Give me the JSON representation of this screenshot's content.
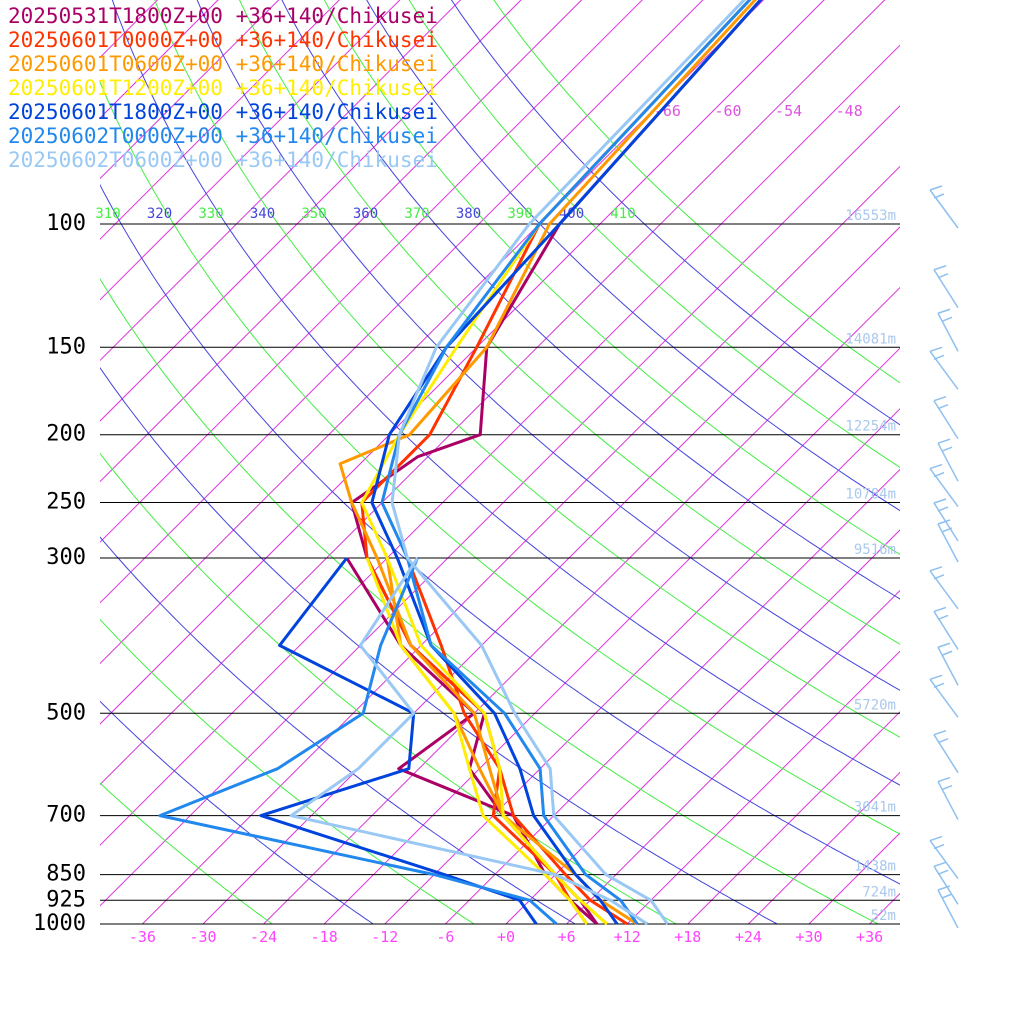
{
  "chart_data": {
    "type": "line",
    "subtype": "skew-t log-p sounding",
    "x_axis": {
      "unit": "degC",
      "ticks": [
        "-36",
        "-30",
        "-24",
        "-18",
        "-12",
        "-6",
        "+0",
        "+6",
        "+12",
        "+18",
        "+24",
        "+30",
        "+36"
      ],
      "color": "#ff44ff"
    },
    "y_axis": {
      "unit": "hPa",
      "scale": "log",
      "ticks": [
        "100",
        "150",
        "200",
        "250",
        "300",
        "500",
        "700",
        "850",
        "925",
        "1000"
      ]
    },
    "height_labels": [
      {
        "p": 100,
        "text": "16553m"
      },
      {
        "p": 150,
        "text": "14081m"
      },
      {
        "p": 200,
        "text": "12254m"
      },
      {
        "p": 250,
        "text": "10784m"
      },
      {
        "p": 300,
        "text": "9516m"
      },
      {
        "p": 500,
        "text": "5720m"
      },
      {
        "p": 700,
        "text": "3041m"
      },
      {
        "p": 850,
        "text": "1438m"
      },
      {
        "p": 925,
        "text": "724m"
      },
      {
        "p": 1000,
        "text": "52m"
      }
    ],
    "isotherm_labels": [
      "-66",
      "-60",
      "-54",
      "-48"
    ],
    "theta_labels": [
      {
        "text": "310",
        "color": "#44ee44"
      },
      {
        "text": "320",
        "color": "#4444dd"
      },
      {
        "text": "330",
        "color": "#44ee44"
      },
      {
        "text": "340",
        "color": "#4444dd"
      },
      {
        "text": "350",
        "color": "#44ee44"
      },
      {
        "text": "360",
        "color": "#4444dd"
      },
      {
        "text": "370",
        "color": "#44ee44"
      },
      {
        "text": "380",
        "color": "#4444dd"
      },
      {
        "text": "390",
        "color": "#44ee44"
      },
      {
        "text": "400",
        "color": "#4444dd"
      },
      {
        "text": "410",
        "color": "#44ee44"
      }
    ],
    "series": [
      {
        "name": "20250531T1800Z+00 +36+140/Chikusei",
        "color": "#aa0066",
        "temperature": [
          [
            20,
            -69
          ],
          [
            100,
            -64
          ],
          [
            150,
            -59
          ],
          [
            200,
            -51
          ],
          [
            215,
            -55
          ],
          [
            250,
            -57
          ],
          [
            300,
            -50
          ],
          [
            400,
            -37
          ],
          [
            500,
            -23
          ],
          [
            600,
            -19
          ],
          [
            700,
            -11
          ],
          [
            850,
            0
          ],
          [
            925,
            5
          ],
          [
            1000,
            9
          ]
        ],
        "dewpoint": [
          [
            300,
            -52
          ],
          [
            400,
            -38
          ],
          [
            500,
            -24
          ],
          [
            600,
            -26
          ],
          [
            700,
            -10
          ],
          [
            850,
            -1
          ],
          [
            925,
            4
          ],
          [
            1000,
            9
          ]
        ]
      },
      {
        "name": "20250601T0000Z+00 +36+140/Chikusei",
        "color": "#ff3300",
        "temperature": [
          [
            20,
            -69
          ],
          [
            100,
            -66
          ],
          [
            150,
            -60
          ],
          [
            200,
            -56
          ],
          [
            250,
            -56
          ],
          [
            300,
            -50
          ],
          [
            400,
            -37
          ],
          [
            500,
            -23
          ],
          [
            600,
            -16
          ],
          [
            700,
            -10
          ],
          [
            850,
            1
          ],
          [
            925,
            6
          ],
          [
            1000,
            12
          ]
        ],
        "dewpoint": [
          [
            300,
            -46
          ],
          [
            400,
            -34
          ],
          [
            500,
            -25
          ],
          [
            600,
            -16
          ],
          [
            700,
            -12
          ],
          [
            850,
            0
          ],
          [
            925,
            4
          ],
          [
            1000,
            8
          ]
        ]
      },
      {
        "name": "20250601T0600Z+00 +36+140/Chikusei",
        "color": "#ff9900",
        "temperature": [
          [
            20,
            -69
          ],
          [
            100,
            -65
          ],
          [
            150,
            -59
          ],
          [
            200,
            -58
          ],
          [
            220,
            -62
          ],
          [
            250,
            -57
          ],
          [
            300,
            -49
          ],
          [
            400,
            -37
          ],
          [
            500,
            -24
          ],
          [
            600,
            -17
          ],
          [
            700,
            -11
          ],
          [
            850,
            2
          ],
          [
            925,
            7
          ],
          [
            1000,
            13
          ]
        ],
        "dewpoint": [
          [
            300,
            -48
          ],
          [
            400,
            -38
          ],
          [
            500,
            -26
          ],
          [
            600,
            -18
          ],
          [
            700,
            -11
          ],
          [
            850,
            0
          ],
          [
            925,
            5
          ],
          [
            1000,
            10
          ]
        ]
      },
      {
        "name": "20250601T1200Z+00 +36+140/Chikusei",
        "color": "#ffee00",
        "temperature": [
          [
            20,
            -69
          ],
          [
            100,
            -66
          ],
          [
            150,
            -62
          ],
          [
            200,
            -59
          ],
          [
            250,
            -56
          ],
          [
            300,
            -48
          ],
          [
            400,
            -36
          ],
          [
            500,
            -23
          ],
          [
            600,
            -16
          ],
          [
            700,
            -11
          ],
          [
            850,
            0
          ],
          [
            925,
            5
          ],
          [
            1000,
            10
          ]
        ],
        "dewpoint": [
          [
            300,
            -50
          ],
          [
            400,
            -38
          ],
          [
            500,
            -26
          ],
          [
            600,
            -19
          ],
          [
            700,
            -13
          ],
          [
            850,
            -1
          ],
          [
            925,
            4
          ],
          [
            1000,
            8
          ]
        ]
      },
      {
        "name": "20250601T1800Z+00 +36+140/Chikusei",
        "color": "#0044dd",
        "temperature": [
          [
            20,
            -69
          ],
          [
            100,
            -64
          ],
          [
            150,
            -63
          ],
          [
            200,
            -60
          ],
          [
            250,
            -55
          ],
          [
            300,
            -47
          ],
          [
            400,
            -35
          ],
          [
            500,
            -22
          ],
          [
            600,
            -14
          ],
          [
            700,
            -8
          ],
          [
            850,
            2
          ],
          [
            925,
            7
          ],
          [
            1000,
            11
          ]
        ],
        "dewpoint": [
          [
            300,
            -52
          ],
          [
            400,
            -50
          ],
          [
            500,
            -30
          ],
          [
            600,
            -25
          ],
          [
            700,
            -35
          ],
          [
            850,
            -11
          ],
          [
            925,
            -1
          ],
          [
            1000,
            3
          ]
        ]
      },
      {
        "name": "20250602T0000Z+00 +36+140/Chikusei",
        "color": "#2288ee",
        "temperature": [
          [
            20,
            -69
          ],
          [
            100,
            -66
          ],
          [
            150,
            -63
          ],
          [
            200,
            -59
          ],
          [
            250,
            -54
          ],
          [
            300,
            -46
          ],
          [
            400,
            -35
          ],
          [
            500,
            -21
          ],
          [
            600,
            -12
          ],
          [
            700,
            -7
          ],
          [
            850,
            3
          ],
          [
            925,
            9
          ],
          [
            1000,
            13
          ]
        ],
        "dewpoint": [
          [
            300,
            -45
          ],
          [
            400,
            -40
          ],
          [
            500,
            -35
          ],
          [
            600,
            -38
          ],
          [
            700,
            -45
          ],
          [
            850,
            -12
          ],
          [
            925,
            0
          ],
          [
            1000,
            5
          ]
        ]
      },
      {
        "name": "20250602T0600Z+00 +36+140/Chikusei",
        "color": "#99c8f4",
        "temperature": [
          [
            20,
            -69
          ],
          [
            100,
            -67
          ],
          [
            150,
            -64
          ],
          [
            200,
            -59
          ],
          [
            250,
            -53
          ],
          [
            300,
            -46
          ],
          [
            400,
            -30
          ],
          [
            500,
            -20
          ],
          [
            600,
            -11
          ],
          [
            700,
            -6
          ],
          [
            850,
            5
          ],
          [
            925,
            12
          ],
          [
            1000,
            16
          ]
        ],
        "dewpoint": [
          [
            300,
            -45
          ],
          [
            400,
            -42
          ],
          [
            500,
            -30
          ],
          [
            600,
            -30
          ],
          [
            700,
            -32
          ],
          [
            850,
            0
          ],
          [
            925,
            8
          ],
          [
            1000,
            14
          ]
        ]
      }
    ]
  }
}
